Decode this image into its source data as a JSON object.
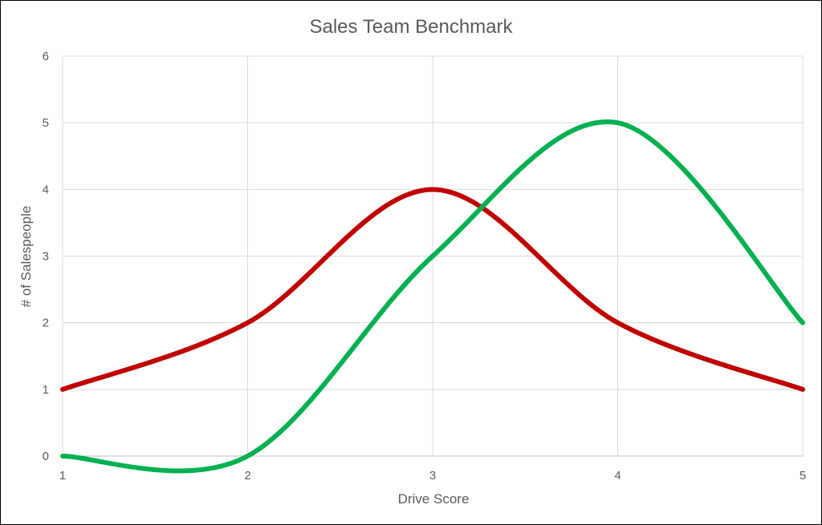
{
  "chart_data": {
    "type": "line",
    "smooth": true,
    "title": "Sales Team Benchmark",
    "xlabel": "Drive Score",
    "ylabel": "# of Salespeople",
    "x": [
      1,
      2,
      3,
      4,
      5
    ],
    "xlim": [
      1,
      5
    ],
    "ylim": [
      0,
      6
    ],
    "x_ticks": [
      "1",
      "2",
      "3",
      "4",
      "5"
    ],
    "y_ticks": [
      "0",
      "1",
      "2",
      "3",
      "4",
      "5",
      "6"
    ],
    "grid": true,
    "legend": "none",
    "series": [
      {
        "values": [
          1,
          2,
          4,
          2,
          1
        ],
        "color": "#c00000"
      },
      {
        "values": [
          0,
          0,
          3,
          5,
          2
        ],
        "color": "#00b050"
      }
    ]
  }
}
